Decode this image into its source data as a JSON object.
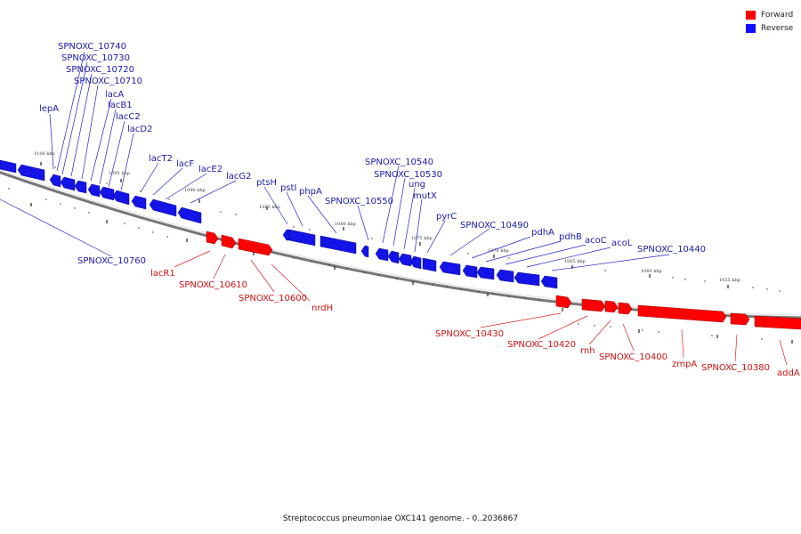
{
  "caption": "Streptococcus pneumoniae OXC141 genome. - 0..2036867",
  "legend": {
    "forward_label": "Forward",
    "reverse_label": "Reverse",
    "forward_color": "#ff0000",
    "reverse_color": "#1010ff"
  },
  "colors": {
    "forward_label": "#cc1111",
    "reverse_label": "#1a1ab0",
    "backbone": "#777777"
  },
  "scale_ticks": [
    "1100 kbp",
    "1095 kbp",
    "1090 kbp",
    "1085 kbp",
    "1080 kbp",
    "1075 kbp",
    "1070 kbp",
    "1065 kbp",
    "1060 kbp",
    "1055 kbp"
  ],
  "reverse_genes": [
    "SPNOXC_10740",
    "SPNOXC_10730",
    "SPNOXC_10720",
    "SPNOXC_10710",
    "lepA",
    "lacA",
    "lacB1",
    "lacC2",
    "lacD2",
    "lacT2",
    "lacF",
    "lacE2",
    "lacG2",
    "ptsH",
    "pstI",
    "phpA",
    "SPNOXC_10540",
    "SPNOXC_10530",
    "ung",
    "mutX",
    "SPNOXC_10550",
    "pyrC",
    "SPNOXC_10490",
    "pdhA",
    "pdhB",
    "acoC",
    "acoL",
    "SPNOXC_10440",
    "SPNOXC_10760"
  ],
  "forward_genes": [
    "lacR1",
    "SPNOXC_10610",
    "SPNOXC_10600",
    "nrdH",
    "SPNOXC_10430",
    "SPNOXC_10420",
    "rnh",
    "SPNOXC_10400",
    "zmpA",
    "SPNOXC_10380",
    "addA"
  ]
}
